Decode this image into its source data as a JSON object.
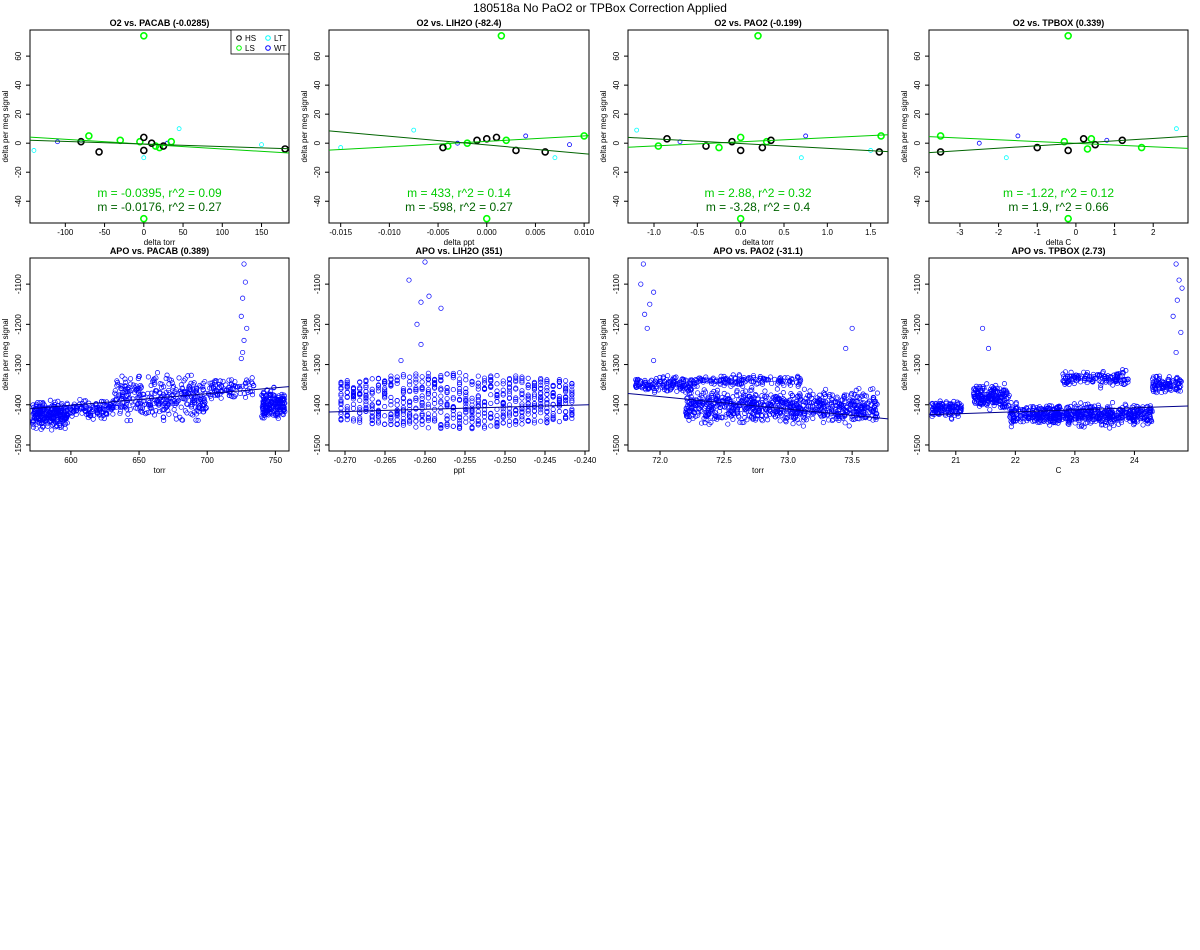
{
  "figure": {
    "suptitle": "180518a   No PaO2 or TPBox Correction Applied",
    "colors": {
      "HS": "#000000",
      "LS": "#00ff00",
      "LT": "#00ffff",
      "WT": "#0000ff",
      "fit_green": "#00cc00",
      "fit_dark": "#006400",
      "ann_green": "#00cc00",
      "ann_dark": "#006400",
      "fit_blue": "#00008b"
    }
  },
  "chart_data": [
    {
      "type": "scatter",
      "title": "O2 vs. PACAB (-0.0285)",
      "xlabel": "delta torr",
      "ylabel": "delta per meg signal",
      "xlim": [
        -145,
        185
      ],
      "ylim": [
        -55,
        78
      ],
      "xticks": [
        -100,
        -50,
        0,
        50,
        100,
        150
      ],
      "xtick_labels": [
        "-100",
        "-50",
        "0",
        "50",
        "100",
        "150"
      ],
      "yticks": [
        -40,
        -20,
        0,
        20,
        40,
        60
      ],
      "ytick_labels": [
        "-40",
        "-20",
        "0",
        "20",
        "40",
        "60"
      ],
      "legend": {
        "position": "top-right",
        "entries": [
          {
            "label": "HS",
            "group": "HS"
          },
          {
            "label": "LT",
            "group": "LT"
          },
          {
            "label": "LS",
            "group": "LS"
          },
          {
            "label": "WT",
            "group": "WT"
          }
        ]
      },
      "groups": {
        "HS": [
          [
            -80,
            1
          ],
          [
            -57,
            -6
          ],
          [
            0,
            4
          ],
          [
            0,
            -5
          ],
          [
            10,
            0
          ],
          [
            25,
            -2
          ],
          [
            180,
            -4
          ]
        ],
        "LS": [
          [
            -70,
            5
          ],
          [
            -30,
            2
          ],
          [
            -5,
            1
          ],
          [
            0,
            74
          ],
          [
            0,
            -52
          ],
          [
            15,
            -2
          ],
          [
            20,
            -3
          ],
          [
            35,
            1
          ]
        ],
        "LT": [
          [
            -140,
            -5
          ],
          [
            0,
            -10
          ],
          [
            45,
            10
          ],
          [
            150,
            -1
          ]
        ],
        "WT": [
          [
            -110,
            1
          ],
          [
            -80,
            2
          ],
          [
            30,
            0
          ]
        ]
      },
      "fits": [
        {
          "x": [
            -145,
            185
          ],
          "y": [
            4.2,
            -6.8
          ],
          "color": "fit_green"
        },
        {
          "x": [
            -145,
            185
          ],
          "y": [
            2.0,
            -3.8
          ],
          "color": "fit_dark"
        }
      ],
      "annotations": [
        {
          "text": "m = -0.0395, r^2 = 0.09",
          "color": "ann_green",
          "line": 1
        },
        {
          "text": "m = -0.0176, r^2 = 0.27",
          "color": "ann_dark",
          "line": 2
        }
      ]
    },
    {
      "type": "scatter",
      "title": "O2 vs. LIH2O (-82.4)",
      "xlabel": "delta ppt",
      "ylabel": "delta per meg signal",
      "xlim": [
        -0.0162,
        0.0105
      ],
      "ylim": [
        -55,
        78
      ],
      "xticks": [
        -0.015,
        -0.01,
        -0.005,
        0,
        0.005,
        0.01
      ],
      "xtick_labels": [
        "-0.015",
        "-0.010",
        "-0.005",
        "0.000",
        "0.005",
        "0.010"
      ],
      "yticks": [
        -40,
        -20,
        0,
        20,
        40,
        60
      ],
      "ytick_labels": [
        "-40",
        "-20",
        "0",
        "20",
        "40",
        "60"
      ],
      "groups": {
        "HS": [
          [
            -0.0045,
            -3
          ],
          [
            -0.001,
            2
          ],
          [
            0,
            3
          ],
          [
            0.001,
            4
          ],
          [
            0.003,
            -5
          ],
          [
            0.006,
            -6
          ]
        ],
        "LS": [
          [
            -0.004,
            -2
          ],
          [
            -0.002,
            0
          ],
          [
            0.0015,
            74
          ],
          [
            0.002,
            2
          ],
          [
            0.0,
            -52
          ],
          [
            0.01,
            5
          ]
        ],
        "LT": [
          [
            -0.0075,
            9
          ],
          [
            -0.015,
            -3
          ],
          [
            0.007,
            -10
          ]
        ],
        "WT": [
          [
            -0.003,
            0
          ],
          [
            0.004,
            5
          ],
          [
            0.0085,
            -1
          ]
        ]
      },
      "fits": [
        {
          "x": [
            -0.0162,
            0.0105
          ],
          "y": [
            -4.8,
            5.2
          ],
          "color": "fit_green"
        },
        {
          "x": [
            -0.0162,
            0.0105
          ],
          "y": [
            8.5,
            -7.5
          ],
          "color": "fit_dark"
        }
      ],
      "annotations": [
        {
          "text": "m = 433, r^2 = 0.14",
          "color": "ann_green",
          "line": 1
        },
        {
          "text": "m = -598, r^2 = 0.27",
          "color": "ann_dark",
          "line": 2
        }
      ]
    },
    {
      "type": "scatter",
      "title": "O2 vs. PAO2 (-0.199)",
      "xlabel": "delta torr",
      "ylabel": "delta per meg signal",
      "xlim": [
        -1.3,
        1.7
      ],
      "ylim": [
        -55,
        78
      ],
      "xticks": [
        -1,
        -0.5,
        0,
        0.5,
        1,
        1.5
      ],
      "xtick_labels": [
        "-1.0",
        "-0.5",
        "0.0",
        "0.5",
        "1.0",
        "1.5"
      ],
      "yticks": [
        -40,
        -20,
        0,
        20,
        40,
        60
      ],
      "ytick_labels": [
        "-40",
        "-20",
        "0",
        "20",
        "40",
        "60"
      ],
      "groups": {
        "HS": [
          [
            -0.85,
            3
          ],
          [
            -0.4,
            -2
          ],
          [
            -0.1,
            1
          ],
          [
            0,
            -5
          ],
          [
            0.25,
            -3
          ],
          [
            0.35,
            2
          ],
          [
            1.6,
            -6
          ]
        ],
        "LS": [
          [
            -0.95,
            -2
          ],
          [
            -0.25,
            -3
          ],
          [
            0,
            4
          ],
          [
            0.2,
            74
          ],
          [
            0.0,
            -52
          ],
          [
            0.3,
            1
          ],
          [
            1.62,
            5
          ]
        ],
        "LT": [
          [
            -1.2,
            9
          ],
          [
            0.7,
            -10
          ],
          [
            1.5,
            -5
          ]
        ],
        "WT": [
          [
            -0.7,
            1
          ],
          [
            0.75,
            5
          ]
        ]
      },
      "fits": [
        {
          "x": [
            -1.3,
            1.7
          ],
          "y": [
            -2.8,
            5.8
          ],
          "color": "fit_green"
        },
        {
          "x": [
            -1.3,
            1.7
          ],
          "y": [
            4.0,
            -5.8
          ],
          "color": "fit_dark"
        }
      ],
      "annotations": [
        {
          "text": "m = 2.88, r^2 = 0.32",
          "color": "ann_green",
          "line": 1
        },
        {
          "text": "m = -3.28, r^2 = 0.4",
          "color": "ann_dark",
          "line": 2
        }
      ]
    },
    {
      "type": "scatter",
      "title": "O2 vs. TPBOX (0.339)",
      "xlabel": "delta C",
      "ylabel": "delta per meg signal",
      "xlim": [
        -3.8,
        2.9
      ],
      "ylim": [
        -55,
        78
      ],
      "xticks": [
        -3,
        -2,
        -1,
        0,
        1,
        2
      ],
      "xtick_labels": [
        "-3",
        "-2",
        "-1",
        "0",
        "1",
        "2"
      ],
      "yticks": [
        -40,
        -20,
        0,
        20,
        40,
        60
      ],
      "ytick_labels": [
        "-40",
        "-20",
        "0",
        "20",
        "40",
        "60"
      ],
      "groups": {
        "HS": [
          [
            -3.5,
            -6
          ],
          [
            -1,
            -3
          ],
          [
            -0.2,
            -5
          ],
          [
            0.2,
            3
          ],
          [
            0.5,
            -1
          ],
          [
            1.2,
            2
          ]
        ],
        "LS": [
          [
            -3.5,
            5
          ],
          [
            -0.3,
            1
          ],
          [
            0.3,
            -4
          ],
          [
            -0.2,
            74
          ],
          [
            -0.2,
            -52
          ],
          [
            0.4,
            3
          ],
          [
            1.7,
            -3
          ]
        ],
        "LT": [
          [
            -1.8,
            -10
          ],
          [
            2.6,
            10
          ]
        ],
        "WT": [
          [
            -2.5,
            0
          ],
          [
            -1.5,
            5
          ],
          [
            0.8,
            2
          ]
        ]
      },
      "fits": [
        {
          "x": [
            -3.8,
            2.9
          ],
          "y": [
            4.5,
            -3.6
          ],
          "color": "fit_green"
        },
        {
          "x": [
            -3.8,
            2.9
          ],
          "y": [
            -6.5,
            4.8
          ],
          "color": "fit_dark"
        }
      ],
      "annotations": [
        {
          "text": "m = -1.22, r^2 = 0.12",
          "color": "ann_green",
          "line": 1
        },
        {
          "text": "m = 1.9, r^2 = 0.66",
          "color": "ann_dark",
          "line": 2
        }
      ]
    },
    {
      "type": "scatter",
      "title": "APO vs. PACAB (0.389)",
      "xlabel": "torr",
      "ylabel": "delta per meg signal",
      "xlim": [
        570,
        760
      ],
      "ylim": [
        -1515,
        -1035
      ],
      "xticks": [
        600,
        650,
        700,
        750
      ],
      "xtick_labels": [
        "600",
        "650",
        "700",
        "750"
      ],
      "yticks": [
        -1500,
        -1400,
        -1300,
        -1200,
        -1100
      ],
      "ytick_labels": [
        "-1500",
        "-1400",
        "-1300",
        "-1200",
        "-1100"
      ],
      "clusters": [
        {
          "x": [
            572,
            598
          ],
          "y": [
            -1470,
            -1380
          ],
          "n": 260
        },
        {
          "x": [
            598,
            632
          ],
          "y": [
            -1440,
            -1380
          ],
          "n": 120
        },
        {
          "x": [
            632,
            700
          ],
          "y": [
            -1460,
            -1310
          ],
          "n": 330
        },
        {
          "x": [
            700,
            735
          ],
          "y": [
            -1400,
            -1320
          ],
          "n": 90
        },
        {
          "x": [
            740,
            757
          ],
          "y": [
            -1450,
            -1350
          ],
          "n": 180
        }
      ],
      "extra_points": [
        [
          727,
          -1050
        ],
        [
          728,
          -1095
        ],
        [
          726,
          -1135
        ],
        [
          725,
          -1180
        ],
        [
          729,
          -1210
        ],
        [
          727,
          -1240
        ],
        [
          726,
          -1270
        ],
        [
          725,
          -1285
        ]
      ],
      "fits": [
        {
          "x": [
            570,
            760
          ],
          "y": [
            -1410,
            -1355
          ],
          "color": "fit_blue"
        }
      ]
    },
    {
      "type": "scatter",
      "title": "APO vs. LIH2O (351)",
      "xlabel": "ppt",
      "ylabel": "delta per meg signal",
      "xlim": [
        -0.272,
        -0.2395
      ],
      "ylim": [
        -1515,
        -1035
      ],
      "xticks": [
        -0.27,
        -0.265,
        -0.26,
        -0.255,
        -0.25,
        -0.245,
        -0.24
      ],
      "xtick_labels": [
        "-0.270",
        "-0.265",
        "-0.260",
        "-0.255",
        "-0.250",
        "-0.245",
        "-0.240"
      ],
      "yticks": [
        -1500,
        -1400,
        -1300,
        -1200,
        -1100
      ],
      "ytick_labels": [
        "-1500",
        "-1400",
        "-1300",
        "-1200",
        "-1100"
      ],
      "columns": {
        "start": -0.2705,
        "step": 0.00078,
        "count": 38,
        "y_center": -1390,
        "y_halfwidth": 70
      },
      "extra_points": [
        [
          -0.26,
          -1045
        ],
        [
          -0.262,
          -1090
        ],
        [
          -0.2595,
          -1130
        ],
        [
          -0.2605,
          -1145
        ],
        [
          -0.258,
          -1160
        ],
        [
          -0.261,
          -1200
        ],
        [
          -0.2605,
          -1250
        ],
        [
          -0.263,
          -1290
        ]
      ],
      "fits": [
        {
          "x": [
            -0.272,
            -0.2395
          ],
          "y": [
            -1418,
            -1400
          ],
          "color": "fit_blue"
        }
      ]
    },
    {
      "type": "scatter",
      "title": "APO vs. PAO2 (-31.1)",
      "xlabel": "torr",
      "ylabel": "delta per meg signal",
      "xlim": [
        71.75,
        73.78
      ],
      "ylim": [
        -1515,
        -1035
      ],
      "xticks": [
        72,
        72.5,
        73,
        73.5
      ],
      "xtick_labels": [
        "72.0",
        "72.5",
        "73.0",
        "73.5"
      ],
      "yticks": [
        -1500,
        -1400,
        -1300,
        -1200,
        -1100
      ],
      "ytick_labels": [
        "-1500",
        "-1400",
        "-1300",
        "-1200",
        "-1100"
      ],
      "clusters": [
        {
          "x": [
            71.8,
            72.3
          ],
          "y": [
            -1380,
            -1320
          ],
          "n": 160
        },
        {
          "x": [
            72.2,
            73.7
          ],
          "y": [
            -1460,
            -1350
          ],
          "n": 800
        },
        {
          "x": [
            72.3,
            73.1
          ],
          "y": [
            -1360,
            -1320
          ],
          "n": 140
        }
      ],
      "extra_points": [
        [
          71.87,
          -1050
        ],
        [
          71.85,
          -1100
        ],
        [
          71.95,
          -1120
        ],
        [
          71.92,
          -1150
        ],
        [
          71.88,
          -1175
        ],
        [
          71.9,
          -1210
        ],
        [
          71.95,
          -1290
        ],
        [
          73.5,
          -1210
        ],
        [
          73.45,
          -1260
        ]
      ],
      "fits": [
        {
          "x": [
            71.75,
            73.78
          ],
          "y": [
            -1372,
            -1435
          ],
          "color": "fit_blue"
        }
      ]
    },
    {
      "type": "scatter",
      "title": "APO vs. TPBOX (2.73)",
      "xlabel": "C",
      "ylabel": "delta per meg signal",
      "xlim": [
        20.55,
        24.9
      ],
      "ylim": [
        -1515,
        -1035
      ],
      "xticks": [
        21,
        22,
        23,
        24
      ],
      "xtick_labels": [
        "21",
        "22",
        "23",
        "24"
      ],
      "yticks": [
        -1500,
        -1400,
        -1300,
        -1200,
        -1100
      ],
      "ytick_labels": [
        "-1500",
        "-1400",
        "-1300",
        "-1200",
        "-1100"
      ],
      "clusters": [
        {
          "x": [
            20.6,
            21.1
          ],
          "y": [
            -1440,
            -1380
          ],
          "n": 120
        },
        {
          "x": [
            21.3,
            21.9
          ],
          "y": [
            -1420,
            -1340
          ],
          "n": 200
        },
        {
          "x": [
            21.9,
            24.3
          ],
          "y": [
            -1460,
            -1390
          ],
          "n": 650
        },
        {
          "x": [
            22.8,
            23.9
          ],
          "y": [
            -1360,
            -1310
          ],
          "n": 140
        },
        {
          "x": [
            24.3,
            24.8
          ],
          "y": [
            -1380,
            -1320
          ],
          "n": 100
        }
      ],
      "extra_points": [
        [
          24.7,
          -1050
        ],
        [
          24.75,
          -1090
        ],
        [
          24.8,
          -1110
        ],
        [
          24.72,
          -1140
        ],
        [
          24.65,
          -1180
        ],
        [
          24.78,
          -1220
        ],
        [
          24.7,
          -1270
        ],
        [
          21.45,
          -1210
        ],
        [
          21.55,
          -1260
        ]
      ],
      "fits": [
        {
          "x": [
            20.55,
            24.9
          ],
          "y": [
            -1425,
            -1403
          ],
          "color": "fit_blue"
        }
      ]
    }
  ]
}
